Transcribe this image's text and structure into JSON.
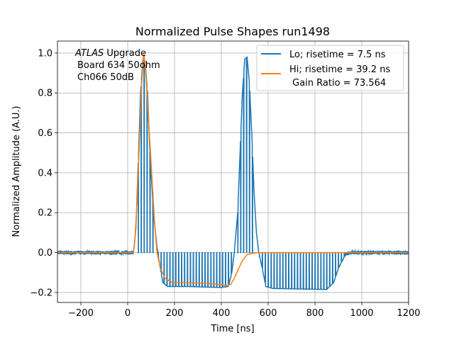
{
  "chart_data": {
    "type": "line",
    "title": "Normalized Pulse Shapes run1498",
    "xlabel": "Time [ns]",
    "ylabel": "Normalized Amplitude (A.U.)",
    "xlim": [
      -300,
      1200
    ],
    "ylim": [
      -0.25,
      1.06
    ],
    "grid": true,
    "xticks": [
      -200,
      0,
      200,
      400,
      600,
      800,
      1000,
      1200
    ],
    "xtick_labels": [
      "−200",
      "0",
      "200",
      "400",
      "600",
      "800",
      "1000",
      "1200"
    ],
    "yticks": [
      -0.2,
      0.0,
      0.2,
      0.4,
      0.6,
      0.8,
      1.0
    ],
    "ytick_labels": [
      "−0.2",
      "0.0",
      "0.2",
      "0.4",
      "0.6",
      "0.8",
      "1.0"
    ],
    "annotation": {
      "italic": "ATLAS",
      "rest": " Upgrade",
      "line2": "Board 634 50ohm",
      "line3": "Ch066 50dB"
    },
    "legend_position": "top-right",
    "series": [
      {
        "name": "Lo",
        "label_line1": "Lo; risetime = 7.5 ns",
        "label_line2": "",
        "color": "#1f77b4",
        "envelope": [
          [
            -300,
            0.0
          ],
          [
            25,
            0.0
          ],
          [
            35,
            0.12
          ],
          [
            45,
            0.45
          ],
          [
            55,
            0.8
          ],
          [
            65,
            0.97
          ],
          [
            75,
            0.95
          ],
          [
            85,
            0.8
          ],
          [
            95,
            0.5
          ],
          [
            110,
            0.2
          ],
          [
            125,
            0.03
          ],
          [
            135,
            -0.05
          ],
          [
            150,
            -0.15
          ],
          [
            170,
            -0.17
          ],
          [
            250,
            -0.17
          ],
          [
            400,
            -0.175
          ],
          [
            430,
            -0.17
          ],
          [
            445,
            -0.1
          ],
          [
            455,
            0.0
          ],
          [
            470,
            0.2
          ],
          [
            480,
            0.5
          ],
          [
            490,
            0.8
          ],
          [
            500,
            0.97
          ],
          [
            510,
            0.98
          ],
          [
            520,
            0.85
          ],
          [
            530,
            0.6
          ],
          [
            540,
            0.3
          ],
          [
            550,
            0.1
          ],
          [
            560,
            0.0
          ],
          [
            575,
            -0.08
          ],
          [
            590,
            -0.17
          ],
          [
            620,
            -0.18
          ],
          [
            850,
            -0.185
          ],
          [
            880,
            -0.15
          ],
          [
            900,
            -0.08
          ],
          [
            930,
            -0.01
          ],
          [
            950,
            0.0
          ],
          [
            1200,
            0.0
          ]
        ],
        "spike_start": 130,
        "spike_end": 460,
        "spike_period": 12.5,
        "spike_top": 0.0,
        "spike_start_2": 575,
        "spike_end_2": 940,
        "spike_period_2": 12.5,
        "spike_top_2": 0.0
      },
      {
        "name": "Hi",
        "label_line1": "Hi; risetime = 39.2 ns",
        "label_line2": " Gain Ratio = 73.564",
        "color": "#ff7f0e",
        "points": [
          [
            -300,
            0.0
          ],
          [
            25,
            0.0
          ],
          [
            30,
            0.05
          ],
          [
            40,
            0.25
          ],
          [
            50,
            0.55
          ],
          [
            60,
            0.85
          ],
          [
            68,
            1.0
          ],
          [
            75,
            0.95
          ],
          [
            85,
            0.75
          ],
          [
            100,
            0.45
          ],
          [
            115,
            0.15
          ],
          [
            125,
            0.0
          ],
          [
            140,
            -0.08
          ],
          [
            160,
            -0.13
          ],
          [
            190,
            -0.15
          ],
          [
            250,
            -0.15
          ],
          [
            350,
            -0.155
          ],
          [
            420,
            -0.165
          ],
          [
            440,
            -0.16
          ],
          [
            455,
            -0.13
          ],
          [
            470,
            -0.09
          ],
          [
            490,
            -0.04
          ],
          [
            510,
            -0.01
          ],
          [
            530,
            -0.005
          ],
          [
            560,
            0.0
          ],
          [
            1200,
            0.0
          ]
        ]
      }
    ]
  }
}
